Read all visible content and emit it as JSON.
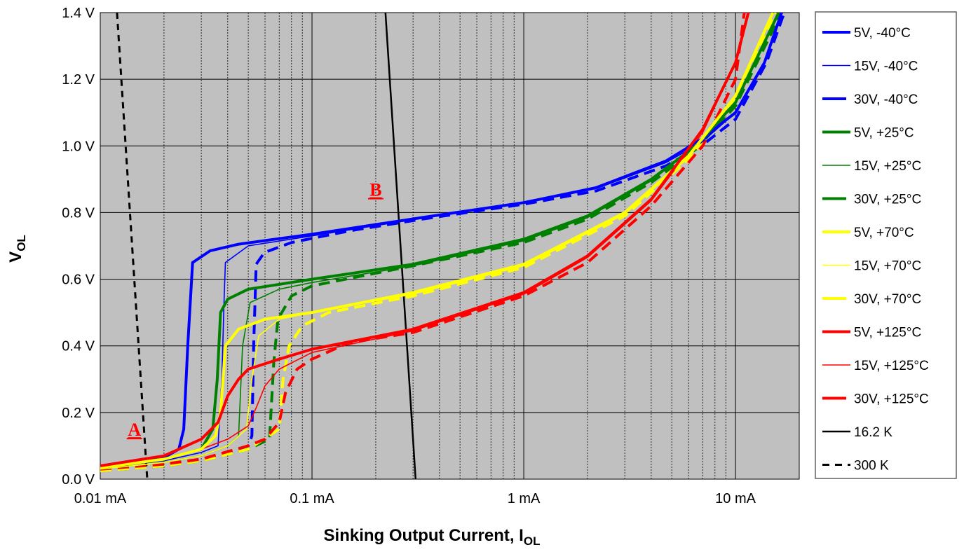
{
  "chart_data": {
    "type": "line",
    "xscale": "log",
    "xlim": [
      0.01,
      20
    ],
    "ylim": [
      0,
      1.4
    ],
    "grid": {
      "major": true,
      "minor_x": true
    },
    "background": "#c0c0c0",
    "x_ticks": [
      {
        "value": 0.01,
        "label": "0.01 mA"
      },
      {
        "value": 0.1,
        "label": "0.1 mA"
      },
      {
        "value": 1,
        "label": "1 mA"
      },
      {
        "value": 10,
        "label": "10 mA"
      }
    ],
    "y_ticks": [
      {
        "value": 0.0,
        "label": "0.0 V"
      },
      {
        "value": 0.2,
        "label": "0.2 V"
      },
      {
        "value": 0.4,
        "label": "0.4 V"
      },
      {
        "value": 0.6,
        "label": "0.6 V"
      },
      {
        "value": 0.8,
        "label": "0.8 V"
      },
      {
        "value": 1.0,
        "label": "1.0 V"
      },
      {
        "value": 1.2,
        "label": "1.2 V"
      },
      {
        "value": 1.4,
        "label": "1.4 V"
      }
    ],
    "xlabel": "Sinking Output Current, I",
    "xlabel_sub": "OL",
    "ylabel": "V",
    "ylabel_sub": "OL",
    "legend_position": "right",
    "annotations": [
      {
        "text": "A",
        "x": 0.0145,
        "y": 0.13,
        "color": "#ff0000"
      },
      {
        "text": "B",
        "x": 0.2,
        "y": 0.85,
        "color": "#ff0000"
      }
    ],
    "series": [
      {
        "name": "5V, -40°C",
        "color": "#0000ff",
        "style": "thick",
        "x": [
          0.01,
          0.015,
          0.0194,
          0.0235,
          0.0248,
          0.0259,
          0.0273,
          0.033,
          0.045,
          0.1,
          0.33,
          1,
          2.2,
          4.7,
          6.9,
          10,
          13.7,
          16.5
        ],
        "y": [
          0.04,
          0.05,
          0.06,
          0.09,
          0.15,
          0.4,
          0.65,
          0.685,
          0.705,
          0.735,
          0.785,
          0.83,
          0.875,
          0.955,
          1.02,
          1.1,
          1.25,
          1.4
        ]
      },
      {
        "name": "15V, -40°C",
        "color": "#0000ff",
        "style": "thin",
        "x": [
          0.01,
          0.02,
          0.03,
          0.036,
          0.0375,
          0.0385,
          0.039,
          0.05,
          0.1,
          0.33,
          1,
          2.2,
          4.7,
          6.9,
          10,
          13.7,
          16.5
        ],
        "y": [
          0.035,
          0.055,
          0.08,
          0.1,
          0.3,
          0.55,
          0.65,
          0.7,
          0.73,
          0.783,
          0.828,
          0.872,
          0.95,
          1.01,
          1.1,
          1.25,
          1.4
        ]
      },
      {
        "name": "30V, -40°C",
        "color": "#0000ff",
        "style": "dashed",
        "x": [
          0.01,
          0.02,
          0.03,
          0.04,
          0.05,
          0.052,
          0.053,
          0.0545,
          0.0596,
          0.08,
          0.15,
          0.33,
          1,
          2.2,
          4.7,
          6.9,
          10,
          14,
          17
        ],
        "y": [
          0.03,
          0.045,
          0.06,
          0.08,
          0.1,
          0.13,
          0.4,
          0.645,
          0.68,
          0.71,
          0.745,
          0.78,
          0.825,
          0.865,
          0.94,
          1.0,
          1.08,
          1.25,
          1.4
        ]
      },
      {
        "name": "5V, +25°C",
        "color": "#008000",
        "style": "thick",
        "x": [
          0.01,
          0.02,
          0.03,
          0.034,
          0.0357,
          0.037,
          0.04,
          0.05,
          0.1,
          0.3,
          1,
          2,
          4,
          6.5,
          10,
          16
        ],
        "y": [
          0.035,
          0.06,
          0.09,
          0.15,
          0.3,
          0.5,
          0.54,
          0.57,
          0.6,
          0.645,
          0.72,
          0.79,
          0.9,
          1.0,
          1.13,
          1.4
        ]
      },
      {
        "name": "15V, +25°C",
        "color": "#008000",
        "style": "thin",
        "x": [
          0.01,
          0.02,
          0.03,
          0.04,
          0.045,
          0.047,
          0.051,
          0.07,
          0.1,
          0.3,
          1,
          2,
          4,
          6.5,
          10,
          16
        ],
        "y": [
          0.03,
          0.05,
          0.07,
          0.1,
          0.13,
          0.4,
          0.53,
          0.57,
          0.59,
          0.64,
          0.715,
          0.785,
          0.895,
          1.0,
          1.13,
          1.4
        ]
      },
      {
        "name": "30V, +25°C",
        "color": "#008000",
        "style": "dashed",
        "x": [
          0.01,
          0.02,
          0.03,
          0.05,
          0.063,
          0.066,
          0.069,
          0.08,
          0.1,
          0.3,
          1,
          2,
          4,
          6.5,
          10,
          16.5
        ],
        "y": [
          0.025,
          0.04,
          0.055,
          0.09,
          0.12,
          0.35,
          0.48,
          0.55,
          0.58,
          0.64,
          0.71,
          0.78,
          0.89,
          0.99,
          1.12,
          1.4
        ]
      },
      {
        "name": "5V, +70°C",
        "color": "#ffff00",
        "style": "thick",
        "x": [
          0.01,
          0.02,
          0.03,
          0.035,
          0.037,
          0.0385,
          0.039,
          0.045,
          0.06,
          0.1,
          0.3,
          1,
          3,
          6,
          10,
          15
        ],
        "y": [
          0.035,
          0.06,
          0.09,
          0.13,
          0.2,
          0.35,
          0.4,
          0.45,
          0.48,
          0.5,
          0.56,
          0.645,
          0.8,
          0.97,
          1.15,
          1.4
        ]
      },
      {
        "name": "15V, +70°C",
        "color": "#ffff00",
        "style": "thin",
        "x": [
          0.01,
          0.02,
          0.03,
          0.04,
          0.049,
          0.052,
          0.056,
          0.07,
          0.1,
          0.3,
          1,
          3,
          6,
          10,
          15
        ],
        "y": [
          0.03,
          0.05,
          0.07,
          0.1,
          0.15,
          0.3,
          0.43,
          0.48,
          0.5,
          0.555,
          0.64,
          0.795,
          0.965,
          1.15,
          1.4
        ]
      },
      {
        "name": "30V, +70°C",
        "color": "#ffff00",
        "style": "dashed",
        "x": [
          0.01,
          0.02,
          0.03,
          0.05,
          0.07,
          0.073,
          0.078,
          0.09,
          0.12,
          0.3,
          1,
          3,
          6,
          10,
          15.5
        ],
        "y": [
          0.025,
          0.04,
          0.055,
          0.09,
          0.15,
          0.3,
          0.4,
          0.46,
          0.5,
          0.55,
          0.635,
          0.79,
          0.96,
          1.14,
          1.4
        ]
      },
      {
        "name": "5V, +125°C",
        "color": "#ff0000",
        "style": "thick",
        "x": [
          0.01,
          0.02,
          0.03,
          0.036,
          0.04,
          0.045,
          0.05,
          0.07,
          0.1,
          0.3,
          1,
          2,
          4,
          7,
          10,
          11.5
        ],
        "y": [
          0.04,
          0.07,
          0.12,
          0.17,
          0.25,
          0.3,
          0.33,
          0.36,
          0.39,
          0.45,
          0.56,
          0.67,
          0.84,
          1.05,
          1.25,
          1.4
        ]
      },
      {
        "name": "15V, +125°C",
        "color": "#ff0000",
        "style": "thin",
        "x": [
          0.01,
          0.02,
          0.03,
          0.04,
          0.05,
          0.055,
          0.06,
          0.07,
          0.1,
          0.3,
          1,
          2,
          4,
          7,
          10,
          11.5
        ],
        "y": [
          0.035,
          0.06,
          0.09,
          0.12,
          0.16,
          0.22,
          0.28,
          0.33,
          0.38,
          0.445,
          0.555,
          0.665,
          0.835,
          1.04,
          1.25,
          1.4
        ]
      },
      {
        "name": "30V, +125°C",
        "color": "#ff0000",
        "style": "dashed",
        "x": [
          0.01,
          0.02,
          0.03,
          0.05,
          0.06,
          0.07,
          0.075,
          0.085,
          0.1,
          0.15,
          0.3,
          1,
          2,
          4,
          7,
          10,
          11
        ],
        "y": [
          0.03,
          0.045,
          0.06,
          0.1,
          0.12,
          0.17,
          0.26,
          0.33,
          0.36,
          0.41,
          0.44,
          0.55,
          0.65,
          0.82,
          1.0,
          1.2,
          1.4
        ]
      },
      {
        "name": "16.2 K",
        "color": "#000000",
        "style": "thin-black",
        "x": [
          0.2222,
          0.3086
        ],
        "y": [
          1.4,
          0.0
        ]
      },
      {
        "name": "300 K",
        "color": "#000000",
        "style": "dashed-black",
        "x": [
          0.012,
          0.01667
        ],
        "y": [
          1.4,
          0.0
        ]
      }
    ]
  }
}
